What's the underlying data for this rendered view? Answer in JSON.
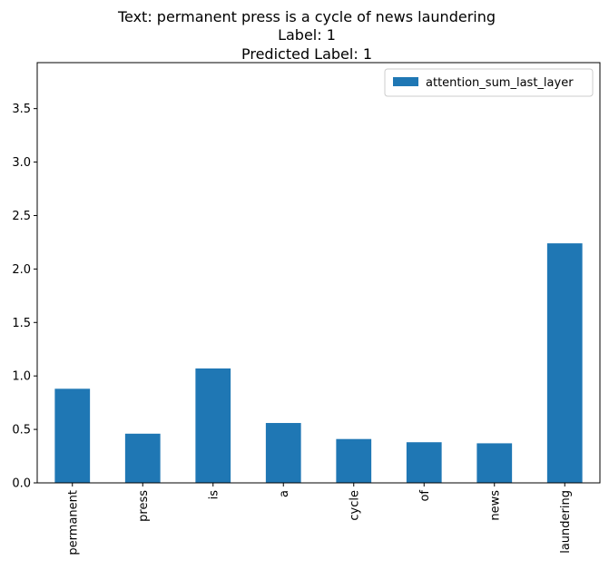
{
  "chart_data": {
    "type": "bar",
    "title_lines": [
      "Text: permanent press is a cycle of news laundering",
      "Label: 1",
      "Predicted Label: 1"
    ],
    "xlabel": "",
    "ylabel": "",
    "categories": [
      "permanent",
      "press",
      "is",
      "a",
      "cycle",
      "of",
      "news",
      "laundering"
    ],
    "series": [
      {
        "name": "attention_sum_last_layer",
        "values": [
          0.88,
          0.46,
          1.07,
          0.56,
          0.41,
          0.38,
          0.37,
          2.24
        ],
        "color": "#1f77b4"
      }
    ],
    "ylim": [
      0,
      3.93
    ],
    "yticks": [
      0.0,
      0.5,
      1.0,
      1.5,
      2.0,
      2.5,
      3.0,
      3.5
    ],
    "ytick_labels": [
      "0.0",
      "0.5",
      "1.0",
      "1.5",
      "2.0",
      "2.5",
      "3.0",
      "3.5"
    ],
    "grid": false,
    "legend_position": "top-right",
    "x_tick_rotation": "vertical"
  }
}
